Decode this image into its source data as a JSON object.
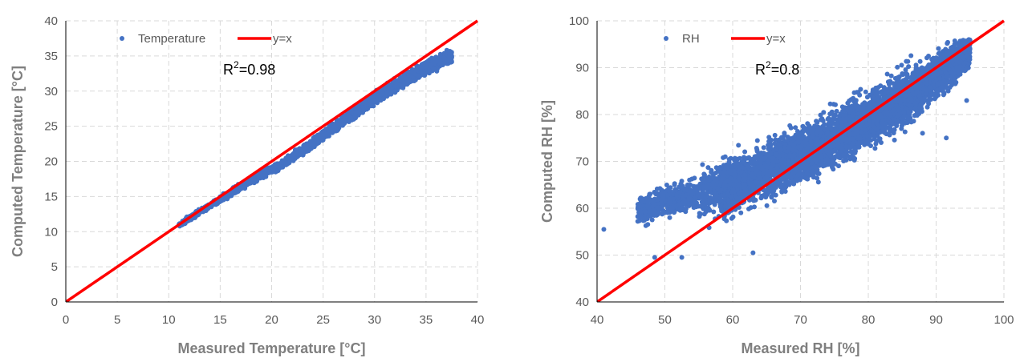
{
  "colors": {
    "point": "#4472c4",
    "identity_line": "#ff0000",
    "grid": "#d9d9d9",
    "axis": "#000000"
  },
  "chart_data": [
    {
      "type": "scatter",
      "xlabel": "Measured Temperature [°C]",
      "ylabel": "Computed Temperature [°C]",
      "xlim": [
        0,
        40
      ],
      "ylim": [
        0,
        40
      ],
      "xticks": [
        0,
        5,
        10,
        15,
        20,
        25,
        30,
        35,
        40
      ],
      "yticks": [
        0,
        5,
        10,
        15,
        20,
        25,
        30,
        35,
        40
      ],
      "grid": true,
      "legend_position": "top-left",
      "series": [
        {
          "name": "Temperature",
          "type": "scatter",
          "color": "#4472c4",
          "trend": {
            "x_range": [
              11,
              37.5
            ],
            "center": [
              [
                11,
                11.0
              ],
              [
                13,
                12.8
              ],
              [
                15,
                14.6
              ],
              [
                17,
                16.4
              ],
              [
                19,
                18.1
              ],
              [
                21,
                19.6
              ],
              [
                23,
                21.6
              ],
              [
                25,
                23.7
              ],
              [
                27,
                25.9
              ],
              [
                29,
                27.9
              ],
              [
                31,
                29.9
              ],
              [
                33,
                31.6
              ],
              [
                35,
                33.4
              ],
              [
                37,
                34.8
              ]
            ],
            "spread": 0.9
          }
        },
        {
          "name": "y=x",
          "type": "line",
          "color": "#ff0000",
          "x": [
            0,
            40
          ],
          "y": [
            0,
            40
          ]
        }
      ],
      "annotation": {
        "text": "R²=0.98",
        "base": "R",
        "sup": "2",
        "rest": "=0.98"
      }
    },
    {
      "type": "scatter",
      "xlabel": "Measured RH [%]",
      "ylabel": "Computed RH [%]",
      "xlim": [
        40,
        100
      ],
      "ylim": [
        40,
        100
      ],
      "xticks": [
        40,
        50,
        60,
        70,
        80,
        90,
        100
      ],
      "yticks": [
        40,
        50,
        60,
        70,
        80,
        90,
        100
      ],
      "grid": true,
      "legend_position": "top-left",
      "series": [
        {
          "name": "RH",
          "type": "scatter",
          "color": "#4472c4",
          "trend": {
            "x_range": [
              41,
              96
            ],
            "center": [
              [
                46,
                59
              ],
              [
                50,
                61.5
              ],
              [
                55,
                63
              ],
              [
                60,
                65
              ],
              [
                65,
                68
              ],
              [
                70,
                71.5
              ],
              [
                75,
                75
              ],
              [
                80,
                79
              ],
              [
                85,
                83
              ],
              [
                90,
                88
              ],
              [
                95,
                94
              ]
            ],
            "spread_low": 4.5,
            "spread_high": 6
          }
        },
        {
          "name": "y=x",
          "type": "line",
          "color": "#ff0000",
          "x": [
            40,
            100
          ],
          "y": [
            40,
            100
          ]
        }
      ],
      "annotation": {
        "text": "R²=0.8",
        "base": "R",
        "sup": "2",
        "rest": "=0.8"
      }
    }
  ]
}
